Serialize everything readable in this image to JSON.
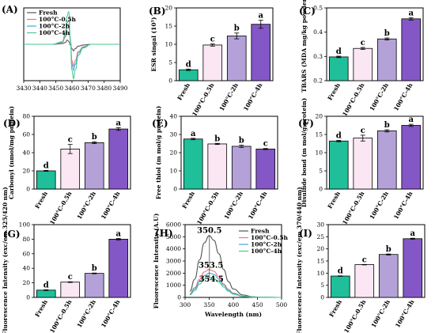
{
  "colors": {
    "fresh": "#1fbf9a",
    "t05": "#fbe6f3",
    "t2": "#b3a1d8",
    "t4": "#8457c6",
    "line_fresh": "#555555",
    "line_t05": "#f07676",
    "line_t2": "#46a4de",
    "line_t4": "#45c98e"
  },
  "chart_data": [
    {
      "panel": "(A)",
      "type": "line",
      "legend": [
        "Fresh",
        "100°C-0.5h",
        "100°C-2h",
        "100°C-4h"
      ],
      "legend_position": "top-left",
      "x_ticks": [
        3430,
        3440,
        3450,
        3460,
        3470,
        3480,
        3490
      ],
      "xlim": [
        3430,
        3490
      ],
      "ylim": [
        -1,
        1
      ],
      "series": [
        {
          "name": "Fresh",
          "x": [
            3430,
            3448,
            3454,
            3456,
            3457,
            3458,
            3459,
            3460,
            3461,
            3462,
            3464,
            3467,
            3472,
            3490
          ],
          "values": [
            0,
            0,
            0.02,
            0.05,
            0.12,
            0.08,
            -0.02,
            -0.12,
            -0.18,
            -0.12,
            -0.05,
            -0.02,
            0,
            0
          ]
        },
        {
          "name": "100°C-0.5h",
          "x": [
            3430,
            3448,
            3454,
            3456,
            3457,
            3458,
            3459,
            3460,
            3461,
            3462,
            3464,
            3467,
            3472,
            3490
          ],
          "values": [
            0,
            0,
            0.05,
            0.2,
            0.52,
            0.55,
            0.1,
            -0.45,
            -0.6,
            -0.45,
            -0.2,
            -0.07,
            0,
            0
          ]
        },
        {
          "name": "100°C-2h",
          "x": [
            3430,
            3448,
            3454,
            3456,
            3457,
            3458,
            3459,
            3460,
            3461,
            3462,
            3464,
            3467,
            3472,
            3490
          ],
          "values": [
            0,
            0,
            0.06,
            0.25,
            0.6,
            0.65,
            0.12,
            -0.55,
            -0.72,
            -0.55,
            -0.24,
            -0.08,
            0,
            0
          ]
        },
        {
          "name": "100°C-4h",
          "x": [
            3430,
            3448,
            3454,
            3456,
            3457,
            3458,
            3459,
            3460,
            3461,
            3462,
            3464,
            3467,
            3472,
            3490
          ],
          "values": [
            0,
            0,
            0.07,
            0.32,
            0.78,
            0.9,
            0.15,
            -0.72,
            -0.95,
            -0.72,
            -0.3,
            -0.1,
            0,
            0
          ]
        }
      ]
    },
    {
      "panel": "(B)",
      "type": "bar",
      "categories": [
        "Fresh",
        "100°C-0.5h",
        "100°C-2h",
        "100°C-4h"
      ],
      "values": [
        3.0,
        9.8,
        12.3,
        15.5
      ],
      "errors": [
        0.2,
        0.3,
        0.8,
        1.1
      ],
      "letters": [
        "d",
        "c",
        "b",
        "a"
      ],
      "ylabel": "ESR singal (10⁵)",
      "ylim": [
        0,
        20
      ],
      "y_ticks": [
        0,
        5,
        10,
        15,
        20
      ]
    },
    {
      "panel": "(C)",
      "type": "bar",
      "categories": [
        "Fresh",
        "100°C-0.5h",
        "100°C-2h",
        "100°C-4h"
      ],
      "values": [
        0.298,
        0.333,
        0.372,
        0.455
      ],
      "errors": [
        0.003,
        0.004,
        0.004,
        0.005
      ],
      "letters": [
        "d",
        "c",
        "b",
        "a"
      ],
      "ylabel": "TBARS (MDA mg/kg powder)",
      "ylim": [
        0.2,
        0.5
      ],
      "y_ticks": [
        0.2,
        0.3,
        0.4,
        0.5
      ]
    },
    {
      "panel": "(D)",
      "type": "bar",
      "categories": [
        "Fresh",
        "100°C-0.5h",
        "100°C-2h",
        "100°C-4h"
      ],
      "values": [
        20,
        44,
        51,
        66
      ],
      "errors": [
        0.5,
        5,
        1,
        1.5
      ],
      "letters": [
        "d",
        "c",
        "b",
        "a"
      ],
      "ylabel": "Carbonyl (nmol/mg protein)",
      "ylim": [
        0,
        80
      ],
      "y_ticks": [
        0,
        20,
        40,
        60,
        80
      ]
    },
    {
      "panel": "(E)",
      "type": "bar",
      "categories": [
        "Fresh",
        "100°C-0.5h",
        "100°C-2h",
        "100°C-4h"
      ],
      "values": [
        27.5,
        24.8,
        23.5,
        22.0
      ],
      "errors": [
        0.4,
        0.3,
        0.6,
        0.3
      ],
      "letters": [
        "a",
        "b",
        "b",
        "c"
      ],
      "ylabel": "Free thiol (m mol/g protein)",
      "ylim": [
        0,
        40
      ],
      "y_ticks": [
        0,
        10,
        20,
        30,
        40
      ]
    },
    {
      "panel": "(F)",
      "type": "bar",
      "categories": [
        "Fresh",
        "100°C-0.5h",
        "100°C-2h",
        "100°C-4h"
      ],
      "values": [
        13.2,
        14.0,
        16.0,
        17.5
      ],
      "errors": [
        0.2,
        0.8,
        0.3,
        0.3
      ],
      "letters": [
        "d",
        "c",
        "b",
        "a"
      ],
      "ylabel": "Disulfide bond (m mol/g protein)",
      "ylim": [
        0,
        20
      ],
      "y_ticks": [
        0,
        5,
        10,
        15,
        20
      ]
    },
    {
      "panel": "(G)",
      "type": "bar",
      "categories": [
        "Fresh",
        "100°C-0.5h",
        "100°C-2h",
        "100°C-4h"
      ],
      "values": [
        10,
        21,
        33,
        80
      ],
      "errors": [
        0.5,
        0.5,
        0.5,
        1
      ],
      "letters": [
        "d",
        "c",
        "b",
        "a"
      ],
      "ylabel": "Fluorescence Intensity (exc/em 325/420 nm)",
      "ylim": [
        0,
        100
      ],
      "y_ticks": [
        0,
        20,
        40,
        60,
        80,
        100
      ]
    },
    {
      "panel": "(H)",
      "type": "line",
      "xlabel": "Wavelength (nm)",
      "ylabel": "Fluorescence Intensity (A.U)",
      "xlim": [
        300,
        500
      ],
      "ylim": [
        0,
        6000
      ],
      "x_ticks": [
        300,
        350,
        400,
        450,
        500
      ],
      "y_ticks": [
        0,
        1000,
        2000,
        3000,
        4000,
        5000,
        6000
      ],
      "legend": [
        "Fresh",
        "100°C-0.5h",
        "100°C-2h",
        "100°C-4h"
      ],
      "legend_position": "top-right",
      "annotations": [
        {
          "text": "350.5",
          "x": 350.5,
          "y": 5300
        },
        {
          "text": "353.5",
          "x": 353.5,
          "y": 2450
        },
        {
          "text": "354.5",
          "x": 354.5,
          "y": 1300
        }
      ],
      "series": [
        {
          "name": "Fresh",
          "x": [
            310,
            320,
            330,
            340,
            350,
            360,
            370,
            380,
            390,
            400,
            420,
            440,
            460,
            500
          ],
          "values": [
            500,
            1500,
            3100,
            4500,
            5100,
            4700,
            3600,
            2300,
            1300,
            700,
            200,
            50,
            10,
            0
          ]
        },
        {
          "name": "100°C-0.5h",
          "x": [
            310,
            320,
            330,
            340,
            350,
            360,
            370,
            380,
            390,
            400,
            420,
            440,
            460,
            500
          ],
          "values": [
            300,
            800,
            1500,
            2100,
            2300,
            2150,
            1700,
            1100,
            650,
            350,
            100,
            30,
            10,
            0
          ]
        },
        {
          "name": "100°C-2h",
          "x": [
            310,
            320,
            330,
            340,
            350,
            360,
            370,
            380,
            390,
            400,
            420,
            440,
            460,
            500
          ],
          "values": [
            250,
            700,
            1300,
            1800,
            2000,
            1900,
            1500,
            1000,
            600,
            320,
            90,
            25,
            10,
            0
          ]
        },
        {
          "name": "100°C-4h",
          "x": [
            310,
            320,
            330,
            340,
            350,
            360,
            370,
            380,
            390,
            400,
            420,
            440,
            460,
            500
          ],
          "values": [
            200,
            550,
            1100,
            1500,
            1650,
            1550,
            1250,
            850,
            500,
            270,
            80,
            20,
            5,
            0
          ]
        }
      ]
    },
    {
      "panel": "(I)",
      "type": "bar",
      "categories": [
        "Fresh",
        "100°C-0.5h",
        "100°C-2h",
        "100°C-4h"
      ],
      "values": [
        8.8,
        13.5,
        17.7,
        24.2
      ],
      "errors": [
        0.1,
        0.1,
        0.2,
        0.2
      ],
      "letters": [
        "d",
        "c",
        "b",
        "a"
      ],
      "ylabel": "Fluorescence Intensity (exc/em 370/440 nm)",
      "ylim": [
        0,
        30
      ],
      "y_ticks": [
        0,
        5,
        10,
        15,
        20,
        25,
        30
      ]
    }
  ]
}
